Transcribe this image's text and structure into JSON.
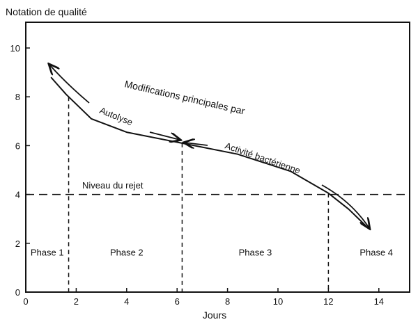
{
  "chart_data": {
    "type": "line",
    "title": "",
    "ylabel": "Notation de qualité",
    "xlabel": "Jours",
    "xlim": [
      0,
      15
    ],
    "ylim": [
      0,
      11
    ],
    "xticks": [
      0,
      2,
      4,
      6,
      8,
      10,
      12,
      14
    ],
    "yticks": [
      0,
      2,
      4,
      6,
      8,
      10
    ],
    "grid": false,
    "series": [
      {
        "x": [
          1.0,
          1.6,
          2.6,
          4.0,
          6.2,
          8.4,
          10.5,
          12.0,
          12.8,
          13.5
        ],
        "y": [
          8.8,
          8.1,
          7.1,
          6.55,
          6.1,
          5.65,
          4.95,
          4.05,
          3.4,
          2.7
        ]
      }
    ],
    "reference_line": {
      "y": 4,
      "label": "Niveau du rejet"
    },
    "phase_boundaries": [
      1.7,
      6.2,
      12.0
    ],
    "phases": [
      {
        "label": "Phase 1",
        "x": 0.85
      },
      {
        "label": "Phase 2",
        "x": 4.0
      },
      {
        "label": "Phase 3",
        "x": 9.1
      },
      {
        "label": "Phase 4",
        "x": 13.9
      }
    ],
    "annotations": {
      "main": "Modifications principales par",
      "autolyse": "Autolyse",
      "bacterial": "Activité bactérienne"
    },
    "line_color": "#111111"
  }
}
